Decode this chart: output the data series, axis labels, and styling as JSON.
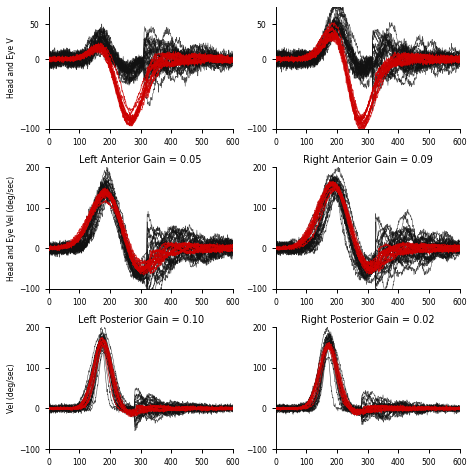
{
  "titles": [
    "",
    "",
    "Left Anterior Gain = 0.05",
    "Right Anterior Gain = 0.09",
    "Left Posterior Gain = 0.10",
    "Right Posterior Gain = 0.02"
  ],
  "background_color": "#ffffff",
  "red_color": "#cc0000",
  "black_color": "#111111",
  "seed": 42,
  "row0_ylim": [
    -100,
    75
  ],
  "row0_yticks": [
    -100,
    0,
    50
  ],
  "row12_ylim": [
    -100,
    200
  ],
  "row12_yticks": [
    -100,
    0,
    100,
    200
  ],
  "xlim": [
    0,
    600
  ],
  "xticks": [
    0,
    100,
    200,
    300,
    400,
    500,
    600
  ]
}
